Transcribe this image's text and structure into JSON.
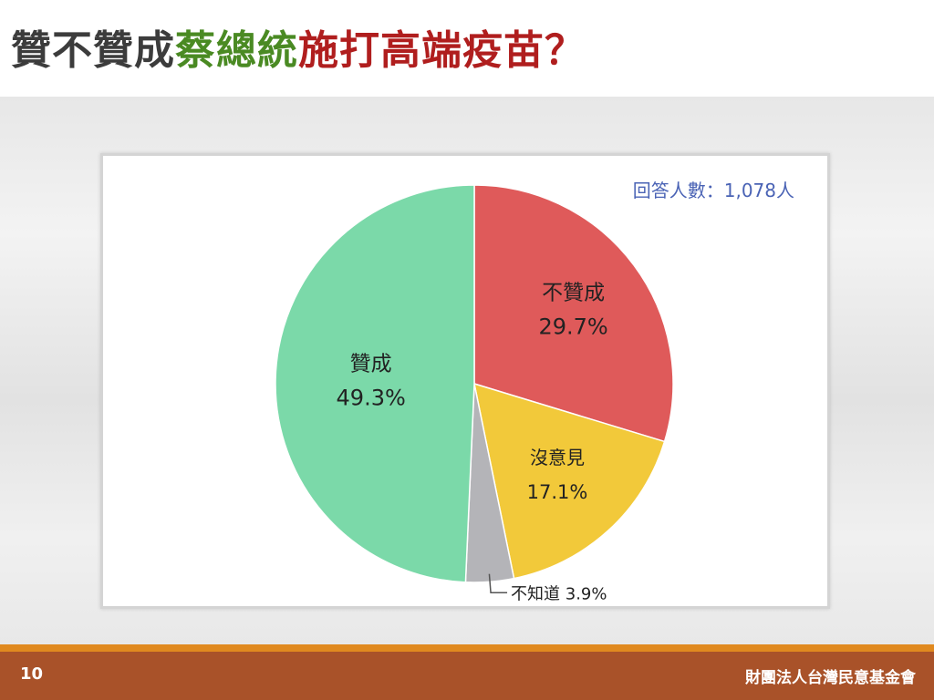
{
  "title": {
    "part1": "贊不贊成",
    "part2": "蔡總統",
    "part3": "施打高端疫苗？",
    "color1": "#3c3c3c",
    "color2": "#4a8a23",
    "color3": "#b01e1e"
  },
  "chart_data": {
    "type": "pie",
    "annotation": "回答人數：1,078人",
    "slices": [
      {
        "label": "不贊成",
        "value": 29.7,
        "value_label": "29.7%",
        "color": "#df5a5a"
      },
      {
        "label": "沒意見",
        "value": 17.1,
        "value_label": "17.1%",
        "color": "#f2c93a"
      },
      {
        "label": "不知道",
        "value": 3.9,
        "value_label": "3.9%",
        "color": "#b4b4b8"
      },
      {
        "label": "贊成",
        "value": 49.3,
        "value_label": "49.3%",
        "color": "#7bd9a9"
      }
    ]
  },
  "footer": {
    "page_number": "10",
    "organization": "財團法人台灣民意基金會"
  }
}
